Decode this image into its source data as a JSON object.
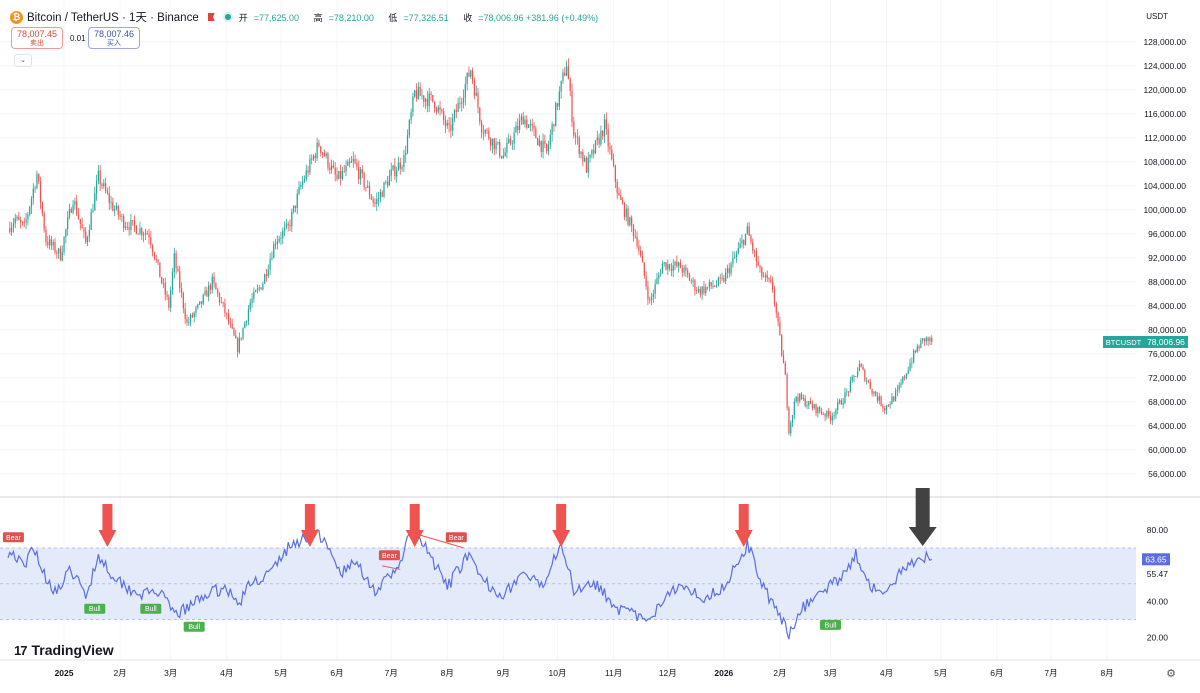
{
  "header": {
    "coin_symbol": "₿",
    "symbol_title": "Bitcoin / TetherUS · 1天 · Binance",
    "ohlc": [
      {
        "key": "开",
        "value": "=77,625.00"
      },
      {
        "key": "高",
        "value": "=78,210.00"
      },
      {
        "key": "低",
        "value": "=77,326.51"
      },
      {
        "key": "收",
        "value": "=78,006.96 +381.96 (+0.49%)"
      }
    ],
    "sell_price": "78,007.45",
    "sell_label": "卖出",
    "spread": "0.01",
    "buy_price": "78,007.46",
    "buy_label": "买入",
    "collapse_icon": "⌄",
    "currency": "USDT"
  },
  "branding": {
    "logo_mark": "17",
    "logo_text": "TradingView",
    "settings_icon": "⚙"
  },
  "colors": {
    "up": "#26a69a",
    "down": "#ef5350",
    "rsi_line": "#5b6ee1",
    "rsi_band": "#e3ebfb",
    "arrow_red": "#ef5350",
    "arrow_dark": "#424242"
  },
  "chart_data": [
    {
      "type": "candlestick",
      "symbol": "BTCUSDT",
      "last_price_label": "BTCUSDT",
      "last_price": "78,006.96",
      "last_price_value": 78006.96,
      "ylim": [
        53000,
        130000
      ],
      "y_ticks": [
        "56,000.00",
        "60,000.00",
        "64,000.00",
        "68,000.00",
        "72,000.00",
        "76,000.00",
        "80,000.00",
        "84,000.00",
        "88,000.00",
        "92,000.00",
        "96,000.00",
        "100,000.00",
        "104,000.00",
        "108,000.00",
        "112,000.00",
        "116,000.00",
        "120,000.00",
        "124,000.00",
        "128,000.00"
      ],
      "y_tick_values": [
        56000,
        60000,
        64000,
        68000,
        72000,
        76000,
        80000,
        84000,
        88000,
        92000,
        96000,
        100000,
        104000,
        108000,
        112000,
        116000,
        120000,
        124000,
        128000
      ],
      "x_range": [
        "2024-12-01",
        "2026-08-17"
      ],
      "x_ticks": [
        {
          "date": "2025-01-01",
          "label": "2025"
        },
        {
          "date": "2025-02-01",
          "label": "2月"
        },
        {
          "date": "2025-03-01",
          "label": "3月"
        },
        {
          "date": "2025-04-01",
          "label": "4月"
        },
        {
          "date": "2025-05-01",
          "label": "5月"
        },
        {
          "date": "2025-06-01",
          "label": "6月"
        },
        {
          "date": "2025-07-01",
          "label": "7月"
        },
        {
          "date": "2025-08-01",
          "label": "8月"
        },
        {
          "date": "2025-09-01",
          "label": "9月"
        },
        {
          "date": "2025-10-01",
          "label": "10月"
        },
        {
          "date": "2025-11-01",
          "label": "11月"
        },
        {
          "date": "2025-12-01",
          "label": "12月"
        },
        {
          "date": "2026-01-01",
          "label": "2026"
        },
        {
          "date": "2026-02-01",
          "label": "2月"
        },
        {
          "date": "2026-03-01",
          "label": "3月"
        },
        {
          "date": "2026-04-01",
          "label": "4月"
        },
        {
          "date": "2026-05-01",
          "label": "5月"
        },
        {
          "date": "2026-06-01",
          "label": "6月"
        },
        {
          "date": "2026-07-01",
          "label": "7月"
        },
        {
          "date": "2026-08-01",
          "label": "8月"
        }
      ],
      "closes": [
        {
          "date": "2024-12-01",
          "close": 97000
        },
        {
          "date": "2024-12-05",
          "close": 98500
        },
        {
          "date": "2024-12-10",
          "close": 97000
        },
        {
          "date": "2024-12-17",
          "close": 106000
        },
        {
          "date": "2024-12-22",
          "close": 95000
        },
        {
          "date": "2024-12-30",
          "close": 92500
        },
        {
          "date": "2025-01-06",
          "close": 102000
        },
        {
          "date": "2025-01-13",
          "close": 94500
        },
        {
          "date": "2025-01-20",
          "close": 105500
        },
        {
          "date": "2025-01-27",
          "close": 101000
        },
        {
          "date": "2025-02-03",
          "close": 98000
        },
        {
          "date": "2025-02-10",
          "close": 97000
        },
        {
          "date": "2025-02-17",
          "close": 96000
        },
        {
          "date": "2025-02-24",
          "close": 88000
        },
        {
          "date": "2025-02-28",
          "close": 84000
        },
        {
          "date": "2025-03-03",
          "close": 92000
        },
        {
          "date": "2025-03-10",
          "close": 81000
        },
        {
          "date": "2025-03-17",
          "close": 84000
        },
        {
          "date": "2025-03-24",
          "close": 88000
        },
        {
          "date": "2025-03-31",
          "close": 83000
        },
        {
          "date": "2025-04-07",
          "close": 77000
        },
        {
          "date": "2025-04-14",
          "close": 84500
        },
        {
          "date": "2025-04-21",
          "close": 88000
        },
        {
          "date": "2025-04-28",
          "close": 95000
        },
        {
          "date": "2025-05-05",
          "close": 97000
        },
        {
          "date": "2025-05-12",
          "close": 104000
        },
        {
          "date": "2025-05-22",
          "close": 111000
        },
        {
          "date": "2025-06-01",
          "close": 105000
        },
        {
          "date": "2025-06-10",
          "close": 108000
        },
        {
          "date": "2025-06-22",
          "close": 101000
        },
        {
          "date": "2025-07-01",
          "close": 106000
        },
        {
          "date": "2025-07-08",
          "close": 108500
        },
        {
          "date": "2025-07-14",
          "close": 119500
        },
        {
          "date": "2025-07-25",
          "close": 118000
        },
        {
          "date": "2025-08-02",
          "close": 113000
        },
        {
          "date": "2025-08-14",
          "close": 123500
        },
        {
          "date": "2025-08-20",
          "close": 114000
        },
        {
          "date": "2025-09-01",
          "close": 109000
        },
        {
          "date": "2025-09-12",
          "close": 115500
        },
        {
          "date": "2025-09-25",
          "close": 109500
        },
        {
          "date": "2025-10-01",
          "close": 118000
        },
        {
          "date": "2025-10-06",
          "close": 124500
        },
        {
          "date": "2025-10-10",
          "close": 113000
        },
        {
          "date": "2025-10-17",
          "close": 107000
        },
        {
          "date": "2025-10-27",
          "close": 114000
        },
        {
          "date": "2025-11-04",
          "close": 102000
        },
        {
          "date": "2025-11-14",
          "close": 95000
        },
        {
          "date": "2025-11-21",
          "close": 84500
        },
        {
          "date": "2025-11-28",
          "close": 91000
        },
        {
          "date": "2025-12-08",
          "close": 90500
        },
        {
          "date": "2025-12-18",
          "close": 86500
        },
        {
          "date": "2025-12-31",
          "close": 88000
        },
        {
          "date": "2026-01-07",
          "close": 92000
        },
        {
          "date": "2026-01-14",
          "close": 96500
        },
        {
          "date": "2026-01-21",
          "close": 89500
        },
        {
          "date": "2026-01-28",
          "close": 87000
        },
        {
          "date": "2026-02-04",
          "close": 72000
        },
        {
          "date": "2026-02-06",
          "close": 63500
        },
        {
          "date": "2026-02-10",
          "close": 69000
        },
        {
          "date": "2026-02-20",
          "close": 67000
        },
        {
          "date": "2026-03-01",
          "close": 65500
        },
        {
          "date": "2026-03-10",
          "close": 69500
        },
        {
          "date": "2026-03-17",
          "close": 74000
        },
        {
          "date": "2026-03-24",
          "close": 70000
        },
        {
          "date": "2026-03-31",
          "close": 67000
        },
        {
          "date": "2026-04-07",
          "close": 69500
        },
        {
          "date": "2026-04-14",
          "close": 74500
        },
        {
          "date": "2026-04-18",
          "close": 77000
        },
        {
          "date": "2026-04-22",
          "close": 78500
        },
        {
          "date": "2026-04-26",
          "close": 78007
        }
      ]
    },
    {
      "type": "line",
      "indicator": "RSI",
      "ylim": [
        12,
        90
      ],
      "y_ticks": [
        "20.00",
        "40.00",
        "55.47",
        "80.00"
      ],
      "y_tick_values": [
        20,
        40,
        55.47,
        80
      ],
      "band": [
        30,
        70
      ],
      "midline": 50,
      "last_label": "63.65",
      "last_value": 63.65,
      "series": [
        {
          "values": [
            {
              "date": "2024-12-01",
              "value": 68
            },
            {
              "date": "2024-12-05",
              "value": 66
            },
            {
              "date": "2024-12-10",
              "value": 58
            },
            {
              "date": "2024-12-15",
              "value": 72
            },
            {
              "date": "2024-12-21",
              "value": 55
            },
            {
              "date": "2024-12-28",
              "value": 45
            },
            {
              "date": "2025-01-05",
              "value": 58
            },
            {
              "date": "2025-01-13",
              "value": 43
            },
            {
              "date": "2025-01-20",
              "value": 66
            },
            {
              "date": "2025-01-27",
              "value": 56
            },
            {
              "date": "2025-02-05",
              "value": 48
            },
            {
              "date": "2025-02-14",
              "value": 44
            },
            {
              "date": "2025-02-22",
              "value": 46
            },
            {
              "date": "2025-03-03",
              "value": 33
            },
            {
              "date": "2025-03-10",
              "value": 36
            },
            {
              "date": "2025-03-20",
              "value": 44
            },
            {
              "date": "2025-04-01",
              "value": 48
            },
            {
              "date": "2025-04-07",
              "value": 38
            },
            {
              "date": "2025-04-14",
              "value": 50
            },
            {
              "date": "2025-04-25",
              "value": 56
            },
            {
              "date": "2025-05-05",
              "value": 70
            },
            {
              "date": "2025-05-15",
              "value": 76
            },
            {
              "date": "2025-05-22",
              "value": 78
            },
            {
              "date": "2025-06-03",
              "value": 56
            },
            {
              "date": "2025-06-12",
              "value": 62
            },
            {
              "date": "2025-06-22",
              "value": 46
            },
            {
              "date": "2025-07-03",
              "value": 56
            },
            {
              "date": "2025-07-12",
              "value": 78
            },
            {
              "date": "2025-07-20",
              "value": 70
            },
            {
              "date": "2025-08-01",
              "value": 48
            },
            {
              "date": "2025-08-12",
              "value": 66
            },
            {
              "date": "2025-08-20",
              "value": 52
            },
            {
              "date": "2025-09-01",
              "value": 44
            },
            {
              "date": "2025-09-12",
              "value": 56
            },
            {
              "date": "2025-09-22",
              "value": 48
            },
            {
              "date": "2025-10-03",
              "value": 74
            },
            {
              "date": "2025-10-10",
              "value": 46
            },
            {
              "date": "2025-10-20",
              "value": 52
            },
            {
              "date": "2025-11-04",
              "value": 36
            },
            {
              "date": "2025-11-14",
              "value": 32
            },
            {
              "date": "2025-11-21",
              "value": 28
            },
            {
              "date": "2025-12-01",
              "value": 46
            },
            {
              "date": "2025-12-10",
              "value": 50
            },
            {
              "date": "2025-12-20",
              "value": 42
            },
            {
              "date": "2026-01-01",
              "value": 48
            },
            {
              "date": "2026-01-14",
              "value": 72
            },
            {
              "date": "2026-01-24",
              "value": 46
            },
            {
              "date": "2026-02-06",
              "value": 22
            },
            {
              "date": "2026-02-12",
              "value": 35
            },
            {
              "date": "2026-02-22",
              "value": 44
            },
            {
              "date": "2026-03-05",
              "value": 52
            },
            {
              "date": "2026-03-15",
              "value": 66
            },
            {
              "date": "2026-03-24",
              "value": 48
            },
            {
              "date": "2026-04-01",
              "value": 44
            },
            {
              "date": "2026-04-10",
              "value": 58
            },
            {
              "date": "2026-04-20",
              "value": 66
            },
            {
              "date": "2026-04-26",
              "value": 63.65
            }
          ]
        }
      ],
      "divergence_lines": [
        {
          "from": {
            "date": "2025-06-26",
            "value": 60
          },
          "to": {
            "date": "2025-07-06",
            "value": 58
          },
          "color": "#ef5350"
        },
        {
          "from": {
            "date": "2025-07-14",
            "value": 78
          },
          "to": {
            "date": "2025-08-10",
            "value": 70
          },
          "color": "#ef5350"
        }
      ],
      "signals": [
        {
          "label": "Bear",
          "date": "2024-12-04",
          "value": 72,
          "kind": "bear"
        },
        {
          "label": "Bull",
          "date": "2025-01-18",
          "value": 40,
          "kind": "bull"
        },
        {
          "label": "Bull",
          "date": "2025-02-18",
          "value": 40,
          "kind": "bull"
        },
        {
          "label": "Bull",
          "date": "2025-03-14",
          "value": 30,
          "kind": "bull"
        },
        {
          "label": "Bear",
          "date": "2025-06-30",
          "value": 62,
          "kind": "bear"
        },
        {
          "label": "Bear",
          "date": "2025-08-06",
          "value": 72,
          "kind": "bear"
        },
        {
          "label": "Bull",
          "date": "2026-03-01",
          "value": 31,
          "kind": "bull"
        }
      ],
      "arrows": [
        {
          "date": "2025-01-25",
          "color": "red"
        },
        {
          "date": "2025-05-17",
          "color": "red"
        },
        {
          "date": "2025-07-14",
          "color": "red"
        },
        {
          "date": "2025-10-03",
          "color": "red"
        },
        {
          "date": "2026-01-12",
          "color": "red"
        },
        {
          "date": "2026-04-21",
          "color": "dark"
        }
      ]
    }
  ]
}
